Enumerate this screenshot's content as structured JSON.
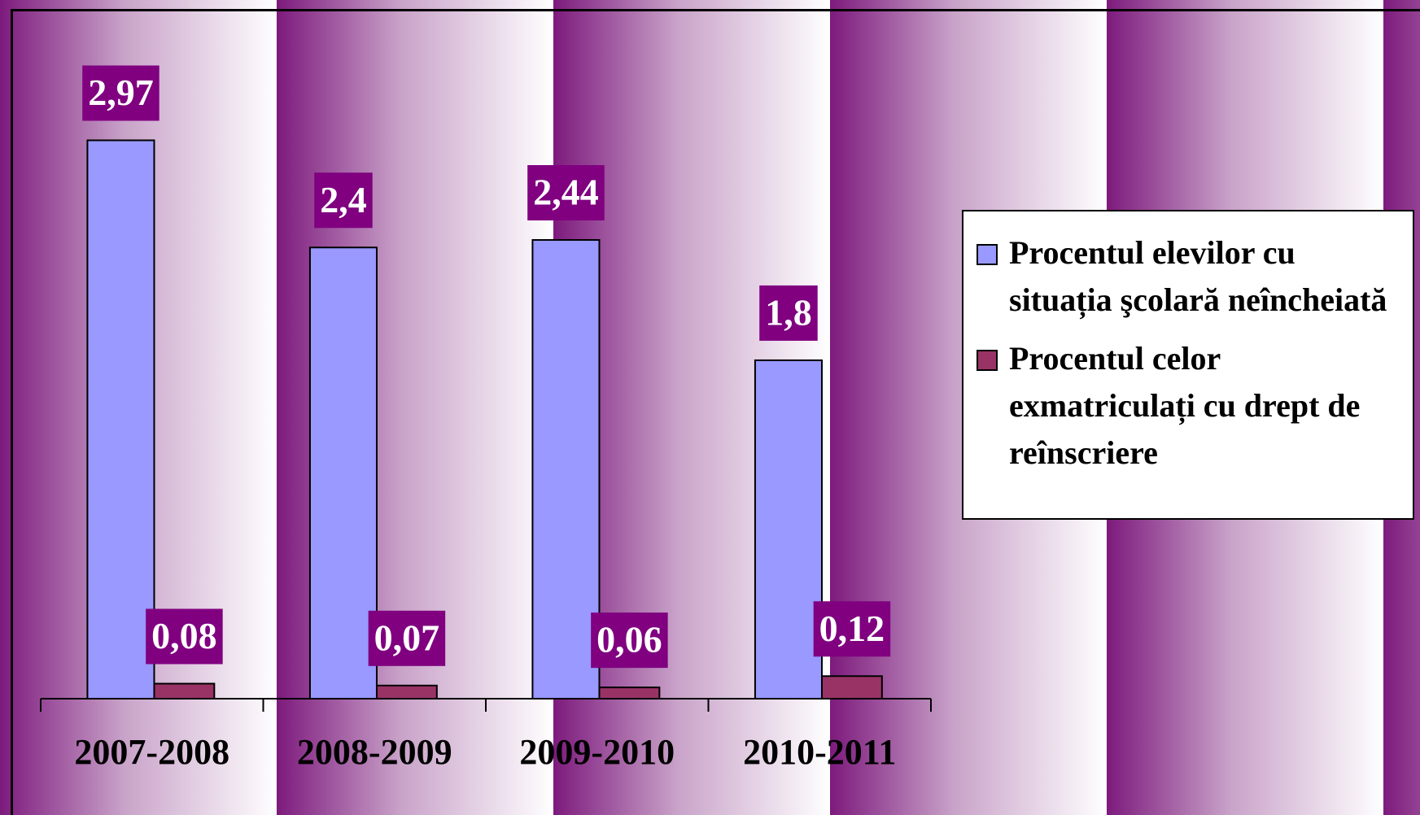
{
  "chart_data": {
    "type": "bar",
    "categories": [
      "2007-2008",
      "2008-2009",
      "2009-2010",
      "2010-2011"
    ],
    "series": [
      {
        "name": "Procentul elevilor cu situația şcolară neîncheiată",
        "color": "#9999ff",
        "values": [
          2.97,
          2.4,
          2.44,
          1.8
        ],
        "value_labels": [
          "2,97",
          "2,4",
          "2,44",
          "1,8"
        ]
      },
      {
        "name": "Procentul celor exmatriculați cu drept de reînscriere",
        "color": "#993366",
        "values": [
          0.08,
          0.07,
          0.06,
          0.12
        ],
        "value_labels": [
          "0,08",
          "0,07",
          "0,06",
          "0,12"
        ]
      }
    ],
    "ylim": [
      0,
      3.5
    ]
  }
}
